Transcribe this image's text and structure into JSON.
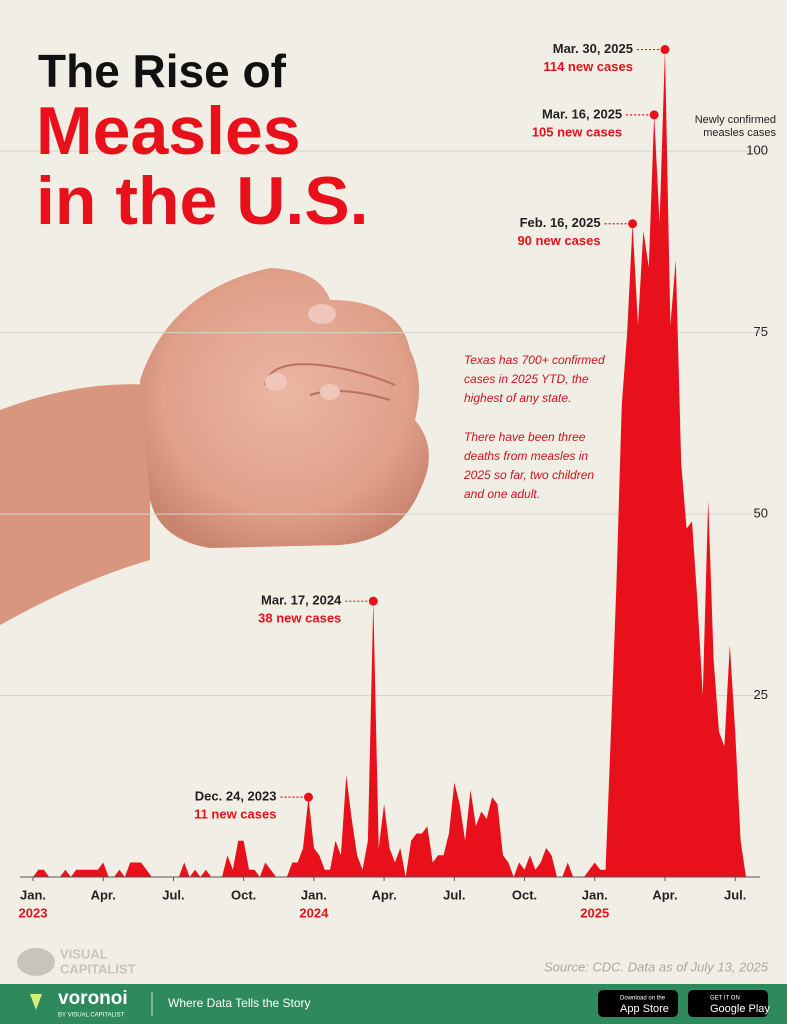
{
  "chart_data": {
    "type": "area",
    "title": [
      "The Rise of",
      "Measles",
      "in the U.S."
    ],
    "y_axis_label": [
      "Newly confirmed",
      "measles cases"
    ],
    "color": "#e8101a",
    "categories": [
      "Jan.",
      null,
      null,
      null,
      null,
      null,
      null,
      null,
      null,
      null,
      null,
      null,
      null,
      "Apr.",
      null,
      null,
      null,
      null,
      null,
      null,
      null,
      null,
      null,
      null,
      null,
      null,
      "Jul.",
      null,
      null,
      null,
      null,
      null,
      null,
      null,
      null,
      null,
      null,
      null,
      null,
      "Oct.",
      null,
      null,
      null,
      null,
      null,
      null,
      null,
      null,
      null,
      null,
      null,
      null,
      "Jan.",
      null,
      null,
      null,
      null,
      null,
      null,
      null,
      null,
      null,
      null,
      null,
      null,
      "Apr.",
      null,
      null,
      null,
      null,
      null,
      null,
      null,
      null,
      null,
      null,
      null,
      null,
      "Jul.",
      null,
      null,
      null,
      null,
      null,
      null,
      null,
      null,
      null,
      null,
      null,
      null,
      "Oct.",
      null,
      null,
      null,
      null,
      null,
      null,
      null,
      null,
      null,
      null,
      null,
      null,
      "Jan.",
      null,
      null,
      null,
      null,
      null,
      null,
      null,
      null,
      null,
      null,
      null,
      null,
      "Apr.",
      null,
      null,
      null,
      null,
      null,
      null,
      null,
      null,
      null,
      null,
      null,
      null,
      "Jul.",
      null,
      null
    ],
    "years": [
      {
        "index": 0,
        "label": "2023"
      },
      {
        "index": 52,
        "label": "2024"
      },
      {
        "index": 104,
        "label": "2025"
      }
    ],
    "values": [
      0,
      1,
      1,
      0,
      0,
      0,
      1,
      0,
      1,
      1,
      1,
      1,
      1,
      2,
      0,
      0,
      1,
      0,
      2,
      2,
      2,
      1,
      0,
      0,
      0,
      0,
      0,
      0,
      2,
      0,
      1,
      0,
      1,
      0,
      0,
      0,
      3,
      1,
      5,
      5,
      1,
      1,
      0,
      2,
      1,
      0,
      0,
      0,
      2,
      2,
      4,
      11,
      4,
      3,
      1,
      1,
      5,
      3,
      14,
      8,
      3,
      1,
      5,
      38,
      4,
      10,
      4,
      2,
      4,
      0,
      5,
      6,
      6,
      7,
      2,
      3,
      3,
      6,
      13,
      10,
      5,
      12,
      7,
      9,
      8,
      11,
      10,
      3,
      2,
      0,
      2,
      1,
      3,
      1,
      2,
      4,
      3,
      0,
      0,
      2,
      0,
      0,
      0,
      1,
      2,
      1,
      1,
      20,
      40,
      65,
      75,
      90,
      76,
      89,
      84,
      105,
      90,
      114,
      76,
      85,
      57,
      48,
      49,
      38,
      25,
      52,
      30,
      20,
      18,
      32,
      20,
      5,
      0
    ],
    "ylim": [
      0,
      120
    ],
    "yticks": [
      25,
      50,
      75,
      100
    ],
    "grid": true,
    "annotations": [
      {
        "index": 51,
        "date": "Dec. 24, 2023",
        "cases": "11 new cases"
      },
      {
        "index": 63,
        "date": "Mar. 17, 2024",
        "cases": "38 new cases"
      },
      {
        "index": 111,
        "date": "Feb. 16, 2025",
        "cases": "90 new cases"
      },
      {
        "index": 115,
        "date": "Mar. 16, 2025",
        "cases": "105 new cases"
      },
      {
        "index": 117,
        "date": "Mar. 30, 2025",
        "cases": "114 new cases"
      }
    ],
    "note": [
      "Texas has 700+ confirmed",
      "cases in 2025 YTD, the",
      "highest of any state.",
      "There have been three",
      "deaths from measles in",
      "2025 so far, two children",
      "and one adult."
    ],
    "source": "Source: CDC. Data as of July 13, 2025"
  },
  "branding": {
    "logo": [
      "VISUAL",
      "CAPITALIST"
    ],
    "footer_brand": "voronoi",
    "footer_by": "BY VISUAL CAPITALIST",
    "tagline": "Where Data Tells the Story",
    "app_store": [
      "Download on the",
      "App Store"
    ],
    "google_play": [
      "GET IT ON",
      "Google Play"
    ]
  }
}
